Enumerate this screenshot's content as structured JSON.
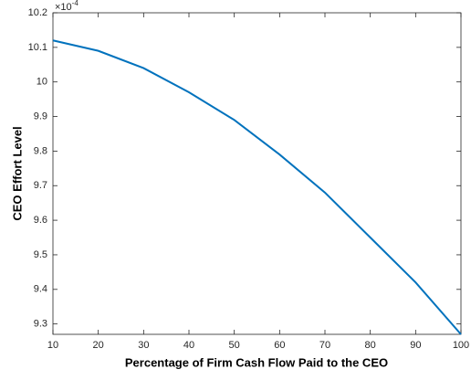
{
  "chart_data": {
    "type": "line",
    "xlabel": "Percentage of Firm Cash Flow Paid to the CEO",
    "ylabel": "CEO Effort Level",
    "axis_exponent": {
      "base": "×10",
      "exponent": "-4"
    },
    "x": [
      10,
      20,
      30,
      40,
      50,
      60,
      70,
      80,
      90,
      100
    ],
    "series": [
      {
        "color": "#0072bd",
        "values": [
          10.12,
          10.09,
          10.04,
          9.97,
          9.89,
          9.79,
          9.68,
          9.55,
          9.42,
          9.27
        ]
      }
    ],
    "xlim": [
      10,
      100
    ],
    "xticks": [
      10,
      20,
      30,
      40,
      50,
      60,
      70,
      80,
      90,
      100
    ],
    "ylim": [
      9.27,
      10.2
    ],
    "yticks": [
      9.3,
      9.4,
      9.5,
      9.6,
      9.7,
      9.8,
      9.9,
      10,
      10.1,
      10.2
    ],
    "grid": false
  }
}
